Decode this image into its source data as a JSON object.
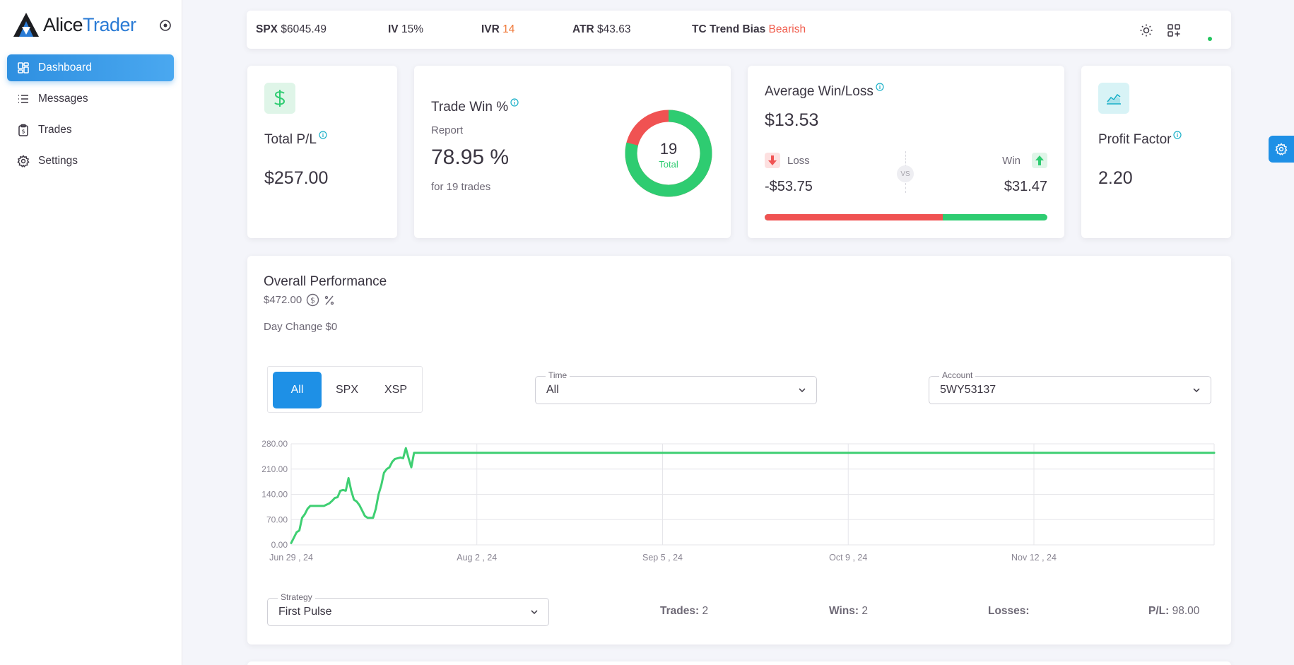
{
  "app": {
    "logo_part1": "Alice",
    "logo_part2": "Trader"
  },
  "sidebar": {
    "items": [
      {
        "label": "Dashboard",
        "icon": "dashboard-icon"
      },
      {
        "label": "Messages",
        "icon": "list-icon"
      },
      {
        "label": "Trades",
        "icon": "clipboard-icon"
      },
      {
        "label": "Settings",
        "icon": "gear-icon"
      }
    ]
  },
  "topbar": {
    "spx_label": "SPX",
    "spx_value": "$6045.49",
    "iv_label": "IV",
    "iv_value": "15%",
    "ivr_label": "IVR",
    "ivr_value": "14",
    "atr_label": "ATR",
    "atr_value": "$43.63",
    "trend_label": "TC Trend Bias",
    "trend_value": "Bearish"
  },
  "cards": {
    "total_pl": {
      "title": "Total P/L",
      "value": "$257.00"
    },
    "trade_win": {
      "title": "Trade Win %",
      "subtitle": "Report",
      "value": "78.95 %",
      "note": "for 19 trades",
      "donut_count": "19",
      "donut_label": "Total",
      "win_fraction": 0.7895
    },
    "avg_win_loss": {
      "title": "Average Win/Loss",
      "value": "$13.53",
      "loss_label": "Loss",
      "loss_value": "-$53.75",
      "win_label": "Win",
      "win_value": "$31.47",
      "vs_label": "VS",
      "loss_fraction": 0.63
    },
    "profit_factor": {
      "title": "Profit Factor",
      "value": "2.20"
    }
  },
  "performance": {
    "title": "Overall Performance",
    "value": "$472.00",
    "day_change": "Day Change $0",
    "segments": [
      "All",
      "SPX",
      "XSP"
    ],
    "time_label": "Time",
    "time_value": "All",
    "account_label": "Account",
    "account_value": "5WY53137",
    "strategy_label": "Strategy",
    "strategy_value": "First Pulse",
    "trades_label": "Trades:",
    "trades_value": "2",
    "wins_label": "Wins:",
    "wins_value": "2",
    "losses_label": "Losses:",
    "losses_value": "",
    "pl_label": "P/L:",
    "pl_value": "98.00"
  },
  "colors": {
    "accent": "#1e90e6",
    "green": "#2ecc71",
    "red": "#f05252",
    "bearish": "#f05a4a",
    "ivr": "#f07a3a"
  },
  "chart_data": {
    "type": "line",
    "title": "",
    "xlabel": "",
    "ylabel": "",
    "ylim": [
      0,
      280
    ],
    "yticks": [
      "0.00",
      "70.00",
      "140.00",
      "210.00",
      "280.00"
    ],
    "ytick_values": [
      0,
      70,
      140,
      210,
      280
    ],
    "xticks": [
      "Jun 29 , 24",
      "Aug 2 , 24",
      "Sep 5 , 24",
      "Oct 9 , 24",
      "Nov 12 , 24"
    ],
    "xtick_days": [
      0,
      34,
      68,
      102,
      136
    ],
    "xmax_days": 169,
    "series": [
      {
        "name": "P/L",
        "color": "#3ecf72",
        "x": [
          0,
          0.5,
          1,
          1.5,
          2,
          2.5,
          3,
          3.5,
          4,
          5,
          6,
          7,
          7.5,
          8,
          8.5,
          9,
          9.5,
          10,
          10.5,
          11,
          11.5,
          12,
          12.5,
          13,
          13.5,
          14,
          14.5,
          15,
          15.5,
          16,
          16.5,
          17,
          17.5,
          18,
          18.5,
          19,
          19.5,
          20,
          20.5,
          21,
          21.5,
          22,
          22.5,
          23,
          23.5,
          24,
          24.5,
          25,
          25.5,
          26,
          26.5,
          27,
          169
        ],
        "y": [
          5,
          20,
          35,
          40,
          75,
          85,
          100,
          108,
          108,
          108,
          108,
          115,
          122,
          130,
          132,
          150,
          152,
          150,
          185,
          150,
          125,
          120,
          110,
          95,
          80,
          75,
          75,
          75,
          100,
          140,
          165,
          200,
          210,
          215,
          230,
          238,
          240,
          242,
          240,
          268,
          240,
          215,
          255,
          255,
          255,
          255,
          255,
          255,
          255,
          255,
          255,
          255,
          255
        ]
      }
    ]
  }
}
